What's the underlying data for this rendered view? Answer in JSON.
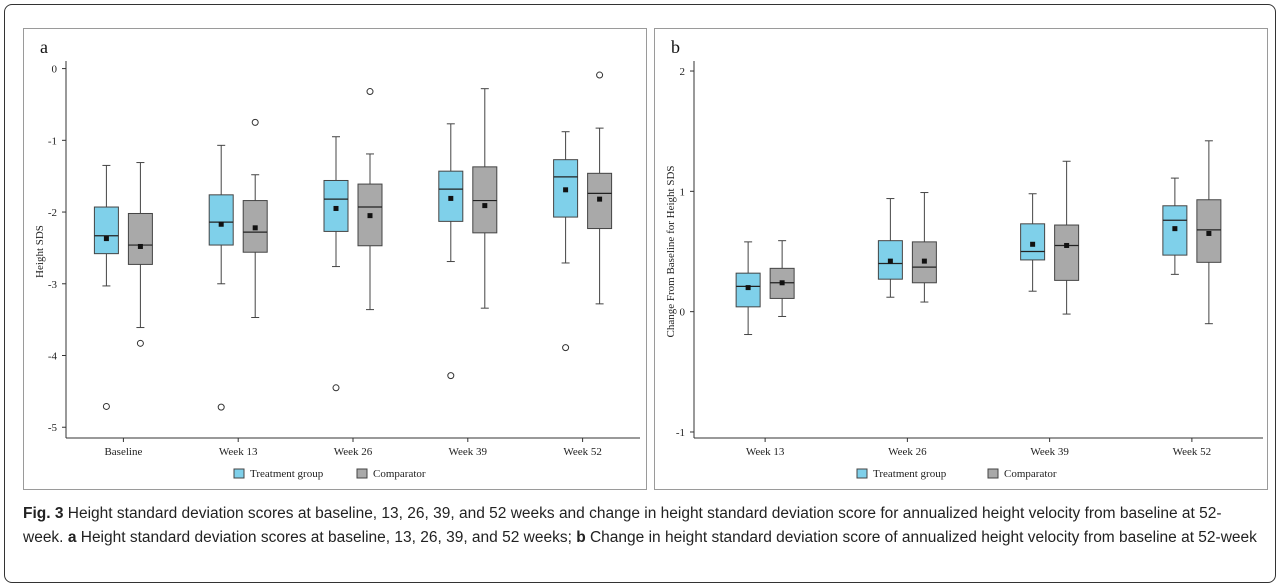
{
  "colors": {
    "treatment": "#7fd0ea",
    "comparator": "#a9a9a9",
    "box_stroke": "#444444",
    "mean_marker": "#111111"
  },
  "chart_data": [
    {
      "type": "box",
      "panel_label": "a",
      "title": "",
      "xlabel": "",
      "ylabel": "Height SDS",
      "categories": [
        "Baseline",
        "Week 13",
        "Week 26",
        "Week 39",
        "Week 52"
      ],
      "yticks": [
        0,
        -1,
        -2,
        -3,
        -4,
        -5
      ],
      "ylim": [
        -5.15,
        0.05
      ],
      "legend_position": "bottom",
      "series": [
        {
          "name": "Treatment group",
          "color": "#7fd0ea",
          "boxes": [
            {
              "whisker_low": -3.03,
              "q1": -2.58,
              "median": -2.33,
              "q3": -1.93,
              "whisker_high": -1.35,
              "mean": -2.37,
              "outliers": [
                -4.71
              ]
            },
            {
              "whisker_low": -3.0,
              "q1": -2.46,
              "median": -2.14,
              "q3": -1.76,
              "whisker_high": -1.07,
              "mean": -2.17,
              "outliers": [
                -4.72
              ]
            },
            {
              "whisker_low": -2.76,
              "q1": -2.27,
              "median": -1.82,
              "q3": -1.56,
              "whisker_high": -0.95,
              "mean": -1.95,
              "outliers": [
                -4.45
              ]
            },
            {
              "whisker_low": -2.69,
              "q1": -2.13,
              "median": -1.68,
              "q3": -1.43,
              "whisker_high": -0.77,
              "mean": -1.81,
              "outliers": [
                -4.28
              ]
            },
            {
              "whisker_low": -2.71,
              "q1": -2.07,
              "median": -1.51,
              "q3": -1.27,
              "whisker_high": -0.88,
              "mean": -1.69,
              "outliers": [
                -3.89
              ]
            }
          ]
        },
        {
          "name": "Comparator",
          "color": "#a9a9a9",
          "boxes": [
            {
              "whisker_low": -3.61,
              "q1": -2.73,
              "median": -2.46,
              "q3": -2.02,
              "whisker_high": -1.31,
              "mean": -2.48,
              "outliers": [
                -3.83
              ]
            },
            {
              "whisker_low": -3.47,
              "q1": -2.56,
              "median": -2.28,
              "q3": -1.84,
              "whisker_high": -1.48,
              "mean": -2.22,
              "outliers": [
                -0.75
              ]
            },
            {
              "whisker_low": -3.36,
              "q1": -2.47,
              "median": -1.93,
              "q3": -1.61,
              "whisker_high": -1.19,
              "mean": -2.05,
              "outliers": [
                -0.32
              ]
            },
            {
              "whisker_low": -3.34,
              "q1": -2.29,
              "median": -1.84,
              "q3": -1.37,
              "whisker_high": -0.28,
              "mean": -1.91,
              "outliers": []
            },
            {
              "whisker_low": -3.28,
              "q1": -2.23,
              "median": -1.74,
              "q3": -1.46,
              "whisker_high": -0.83,
              "mean": -1.82,
              "outliers": [
                -0.09
              ]
            }
          ]
        }
      ]
    },
    {
      "type": "box",
      "panel_label": "b",
      "title": "",
      "xlabel": "",
      "ylabel": "Change From Baseline for Height SDS",
      "categories": [
        "Week 13",
        "Week 26",
        "Week 39",
        "Week 52"
      ],
      "yticks": [
        2,
        1,
        0,
        -1
      ],
      "ylim": [
        -1.05,
        2.05
      ],
      "legend_position": "bottom",
      "series": [
        {
          "name": "Treatment group",
          "color": "#7fd0ea",
          "boxes": [
            {
              "whisker_low": -0.19,
              "q1": 0.04,
              "median": 0.21,
              "q3": 0.32,
              "whisker_high": 0.58,
              "mean": 0.2,
              "outliers": []
            },
            {
              "whisker_low": 0.12,
              "q1": 0.27,
              "median": 0.4,
              "q3": 0.59,
              "whisker_high": 0.94,
              "mean": 0.42,
              "outliers": []
            },
            {
              "whisker_low": 0.17,
              "q1": 0.43,
              "median": 0.5,
              "q3": 0.73,
              "whisker_high": 0.98,
              "mean": 0.56,
              "outliers": []
            },
            {
              "whisker_low": 0.31,
              "q1": 0.47,
              "median": 0.76,
              "q3": 0.88,
              "whisker_high": 1.11,
              "mean": 0.69,
              "outliers": []
            }
          ]
        },
        {
          "name": "Comparator",
          "color": "#a9a9a9",
          "boxes": [
            {
              "whisker_low": -0.04,
              "q1": 0.11,
              "median": 0.24,
              "q3": 0.36,
              "whisker_high": 0.59,
              "mean": 0.24,
              "outliers": []
            },
            {
              "whisker_low": 0.08,
              "q1": 0.24,
              "median": 0.37,
              "q3": 0.58,
              "whisker_high": 0.99,
              "mean": 0.42,
              "outliers": []
            },
            {
              "whisker_low": -0.02,
              "q1": 0.26,
              "median": 0.55,
              "q3": 0.72,
              "whisker_high": 1.25,
              "mean": 0.55,
              "outliers": []
            },
            {
              "whisker_low": -0.1,
              "q1": 0.41,
              "median": 0.68,
              "q3": 0.93,
              "whisker_high": 1.42,
              "mean": 0.65,
              "outliers": []
            }
          ]
        }
      ]
    }
  ],
  "caption": {
    "label": "Fig. 3",
    "main": " Height standard deviation scores at baseline, 13, 26, 39, and 52 weeks and change in height standard deviation score for annualized height velocity from baseline at 52-week. ",
    "a_label": "a",
    "a_text": " Height standard deviation scores at baseline, 13, 26, 39, and 52 weeks; ",
    "b_label": "b",
    "b_text": " Change in height standard deviation score of annualized height velocity from baseline at 52-week"
  }
}
